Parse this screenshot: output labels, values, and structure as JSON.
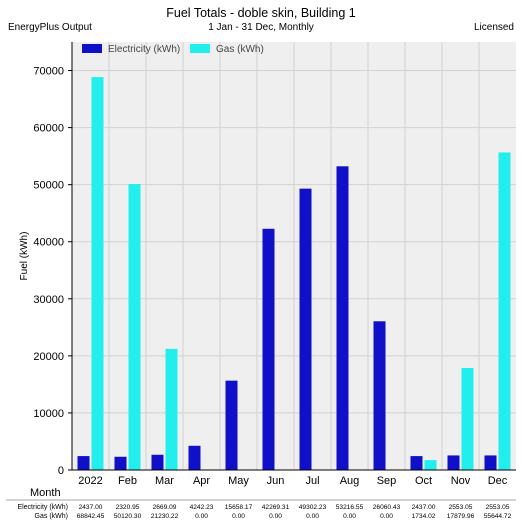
{
  "header": {
    "title": "Fuel Totals - doble skin, Building 1",
    "subtitle": "1 Jan - 31 Dec, Monthly",
    "left_label": "EnergyPlus Output",
    "right_label": "Licensed"
  },
  "colors": {
    "electricity": "#1010c8",
    "gas": "#22eeee",
    "plot_background": "#efefef",
    "grid": "#d2d2d2"
  },
  "chart_data": {
    "type": "bar",
    "categories": [
      "2022",
      "Feb",
      "Mar",
      "Apr",
      "May",
      "Jun",
      "Jul",
      "Aug",
      "Sep",
      "Oct",
      "Nov",
      "Dec"
    ],
    "series": [
      {
        "name": "Electricity (kWh)",
        "values": [
          2437.0,
          2320.95,
          2669.09,
          4242.23,
          15658.17,
          42269.31,
          49302.23,
          53216.55,
          26060.43,
          2437.0,
          2553.05,
          2553.05
        ]
      },
      {
        "name": "Gas (kWh)",
        "values": [
          68842.45,
          50120.3,
          21230.22,
          0.0,
          0.0,
          0.0,
          0.0,
          0.0,
          0.0,
          1734.02,
          17879.96,
          55644.72
        ]
      }
    ],
    "table_rows": [
      {
        "label": "Electricity (kWh)",
        "cells": [
          "2437.00",
          "2320.95",
          "2669.09",
          "4242.23",
          "15658.17",
          "42269.31",
          "49302.23",
          "53216.55",
          "26060.43",
          "2437.00",
          "2553.05",
          "2553.05"
        ]
      },
      {
        "label": "Gas (kWh)",
        "cells": [
          "68842.45",
          "50120.30",
          "21230.22",
          "0.00",
          "0.00",
          "0.00",
          "0.00",
          "0.00",
          "0.00",
          "1734.02",
          "17879.96",
          "55644.72"
        ]
      }
    ],
    "ylabel": "Fuel (kWh)",
    "xlabel": "Month",
    "ylim": [
      0,
      75000
    ],
    "yticks": [
      0,
      10000,
      20000,
      30000,
      40000,
      50000,
      60000,
      70000
    ],
    "grid": true,
    "legend_position": "top-left"
  }
}
